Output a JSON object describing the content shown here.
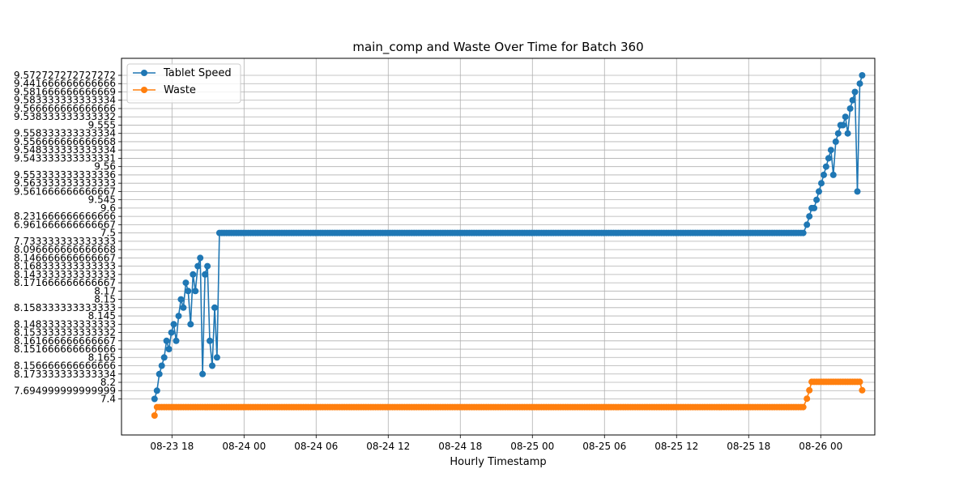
{
  "chart_data": {
    "type": "line",
    "title": "main_comp and Waste Over Time for Batch 360",
    "xlabel": "Hourly Timestamp",
    "ylabel": "",
    "grid": true,
    "legend_position": "top-left",
    "x_tick_labels": [
      "08-23 18",
      "08-24 00",
      "08-24 06",
      "08-24 12",
      "08-24 18",
      "08-25 00",
      "08-25 06",
      "08-25 12",
      "08-25 18",
      "08-26 00"
    ],
    "x_tick_hours": [
      18,
      24,
      30,
      36,
      42,
      48,
      54,
      60,
      66,
      72
    ],
    "xlim_hours": [
      13.8,
      76.5
    ],
    "y_categories": [
      "7.4",
      "7.694999999999999",
      "8.2",
      "8.173333333333334",
      "8.156666666666666",
      "8.165",
      "8.151666666666666",
      "8.161666666666667",
      "8.153333333333332",
      "8.148333333333333",
      "8.145",
      "8.158333333333333",
      "8.15",
      "8.17",
      "8.171666666666667",
      "8.143333333333333",
      "8.168333333333333",
      "8.146666666666667",
      "8.096666666666668",
      "7.733333333333333",
      "7.5",
      "6.961666666666667",
      "8.231666666666666",
      "9.6",
      "9.545",
      "9.561666666666667",
      "9.563333333333333",
      "9.553333333333336",
      "9.56",
      "9.543333333333331",
      "9.548333333333334",
      "9.556666666666668",
      "9.558333333333334",
      "9.555",
      "9.538333333333332",
      "9.566666666666666",
      "9.583333333333334",
      "9.581666666666669",
      "9.441666666666666",
      "9.572727272727272"
    ],
    "series": [
      {
        "name": "Tablet Speed",
        "color": "#1f77b4",
        "x_hours": [
          16.55,
          16.75,
          16.95,
          17.15,
          17.35,
          17.55,
          17.75,
          17.95,
          18.15,
          18.35,
          18.55,
          18.75,
          18.95,
          19.15,
          19.35,
          19.55,
          19.75,
          19.95,
          20.15,
          20.35,
          20.55,
          20.75,
          20.95,
          21.15,
          21.35,
          21.55,
          21.75
        ],
        "y_index": [
          0,
          1,
          3,
          4,
          5,
          7,
          6,
          8,
          9,
          7,
          10,
          12,
          11,
          14,
          13,
          9,
          15,
          13,
          16,
          17,
          3,
          15,
          16,
          7,
          4,
          11,
          5
        ],
        "plateau": {
          "x_from_hours": 21.95,
          "x_to_hours": 70.7,
          "step_hours": 0.2,
          "y_index": 20
        },
        "tail_x_hours": [
          70.85,
          71.05,
          71.25,
          71.45,
          71.65,
          71.85,
          72.05,
          72.25,
          72.45,
          72.65,
          72.85,
          73.05,
          73.25,
          73.45,
          73.65,
          73.85,
          74.05,
          74.25,
          74.45,
          74.65,
          74.85,
          75.05,
          75.25,
          75.45
        ],
        "tail_y_index": [
          21,
          22,
          23,
          23,
          24,
          25,
          26,
          27,
          28,
          29,
          30,
          27,
          31,
          32,
          33,
          33,
          34,
          32,
          35,
          36,
          37,
          25,
          38,
          39
        ]
      },
      {
        "name": "Waste",
        "color": "#ff7f0e",
        "x_hours": [
          16.55
        ],
        "y_values": [
          0
        ],
        "plateau": {
          "x_from_hours": 16.75,
          "x_to_hours": 70.7,
          "step_hours": 0.2,
          "y_value": 1
        },
        "tail_x_hours": [
          70.85,
          71.05,
          71.25,
          71.45,
          71.65,
          71.85,
          72.05,
          72.25,
          72.45,
          72.65,
          72.85,
          73.05,
          73.25,
          73.45,
          73.65,
          73.85,
          74.05,
          74.25,
          74.45,
          74.65,
          74.85,
          75.05,
          75.25,
          75.45
        ],
        "tail_y_values": [
          2,
          3,
          4,
          4,
          4,
          4,
          4,
          4,
          4,
          4,
          4,
          4,
          4,
          4,
          4,
          4,
          4,
          4,
          4,
          4,
          4,
          4,
          4,
          3
        ]
      }
    ]
  }
}
